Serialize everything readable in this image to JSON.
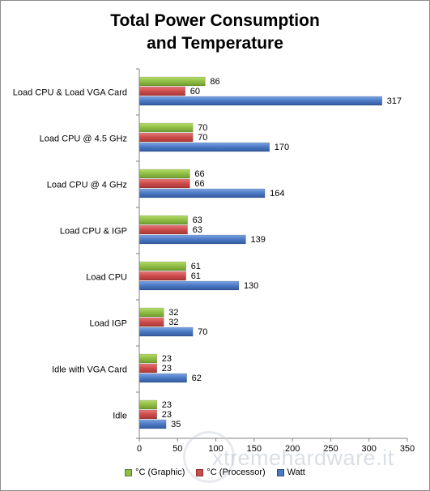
{
  "chart_data": {
    "type": "bar",
    "orientation": "horizontal",
    "title_lines": [
      "Total Power Consumption",
      "and Temperature"
    ],
    "categories": [
      "Load CPU & Load VGA Card",
      "Load CPU @ 4.5 GHz",
      "Load CPU @ 4 GHz",
      "Load CPU & IGP",
      "Load CPU",
      "Load IGP",
      "Idle with VGA Card",
      "Idle"
    ],
    "series": [
      {
        "name": "°C (Graphic)",
        "color": "#8fbd44",
        "values": [
          86,
          70,
          66,
          63,
          61,
          32,
          23,
          23
        ]
      },
      {
        "name": "°C (Processor)",
        "color": "#cc4b4b",
        "values": [
          60,
          70,
          66,
          63,
          61,
          32,
          23,
          23
        ]
      },
      {
        "name": "Watt",
        "color": "#4a78c4",
        "values": [
          317,
          170,
          164,
          139,
          130,
          70,
          62,
          35
        ]
      }
    ],
    "xlim": [
      0,
      350
    ],
    "xticks": [
      "0",
      "50",
      "100",
      "150",
      "200",
      "250",
      "300",
      "350"
    ],
    "legend_position": "bottom",
    "grid": false
  },
  "watermark": {
    "text": "xtremehardware.it"
  }
}
